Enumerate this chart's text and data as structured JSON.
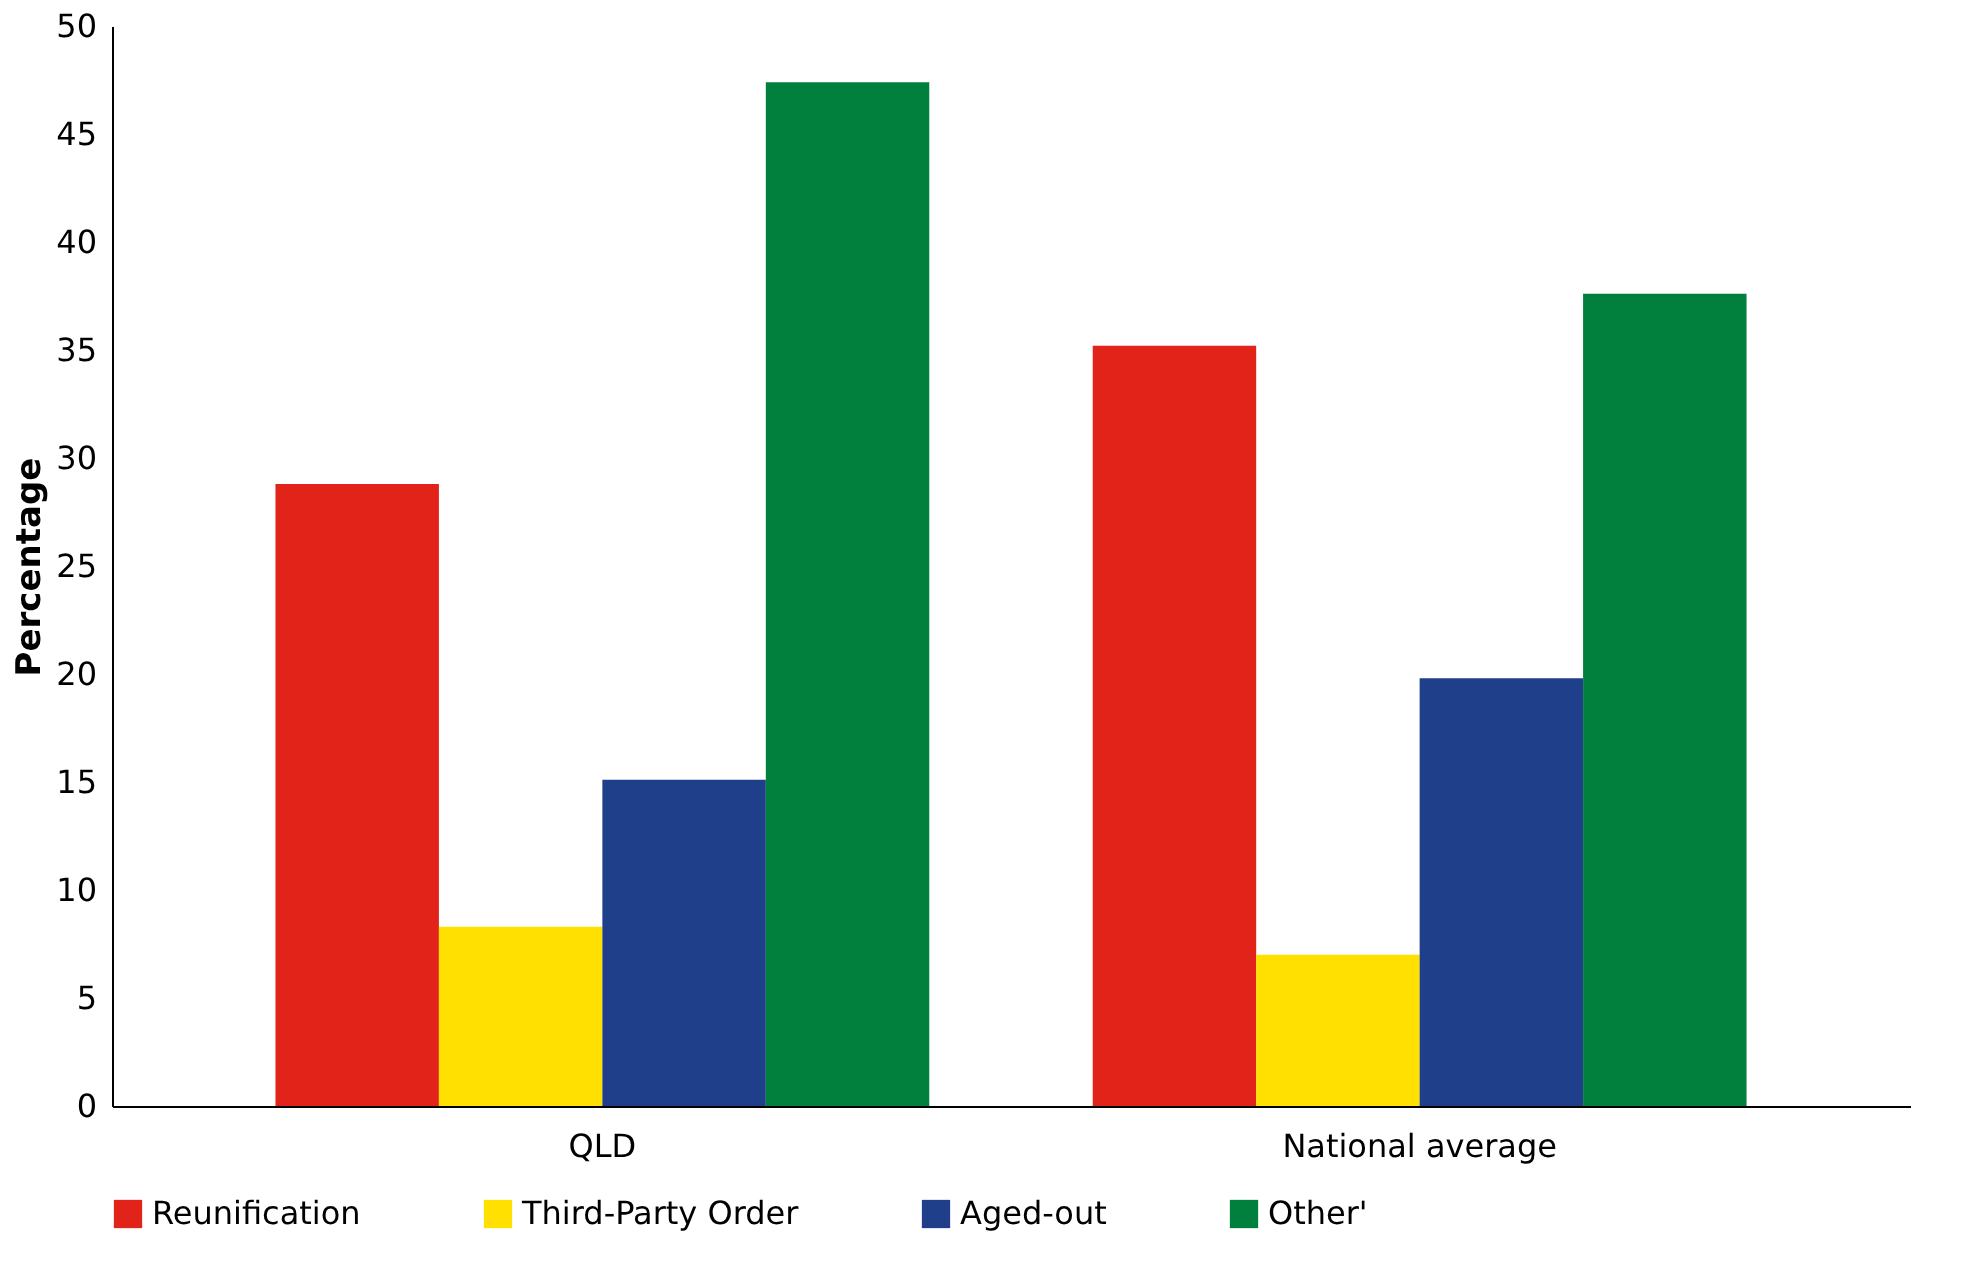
{
  "chart_data": {
    "type": "bar",
    "ylabel": "Percentage",
    "categories": [
      "QLD",
      "National average"
    ],
    "series": [
      {
        "name": "Reunification",
        "color": "#e2231a",
        "values": [
          28.8,
          35.2
        ]
      },
      {
        "name": "Third-Party Order",
        "color": "#ffe000",
        "values": [
          8.3,
          7.0
        ]
      },
      {
        "name": "Aged-out",
        "color": "#1f3f8a",
        "values": [
          15.1,
          19.8
        ]
      },
      {
        "name": "Other'",
        "color": "#00803c",
        "values": [
          47.4,
          37.6
        ]
      }
    ],
    "ylim": [
      0,
      50
    ],
    "yticks": [
      0,
      5,
      10,
      15,
      20,
      25,
      30,
      35,
      40,
      45,
      50
    ],
    "grid": false,
    "legend": "bottom"
  }
}
